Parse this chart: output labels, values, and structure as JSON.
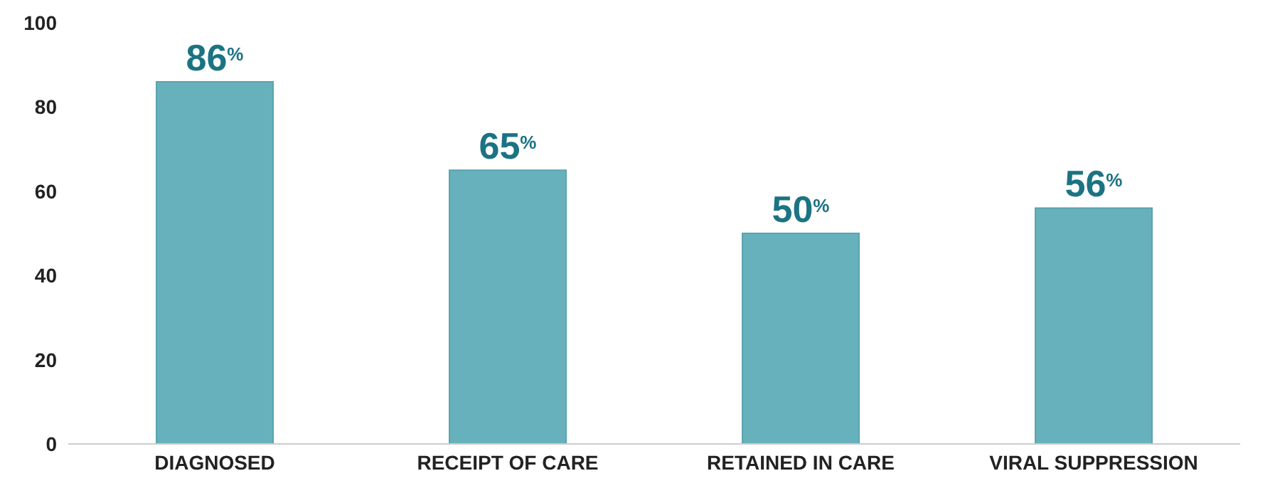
{
  "chart_data": {
    "type": "bar",
    "categories": [
      "DIAGNOSED",
      "RECEIPT OF CARE",
      "RETAINED IN CARE",
      "VIRAL SUPPRESSION"
    ],
    "values": [
      86,
      65,
      50,
      56
    ],
    "color": "#67b1bd",
    "value_labels": [
      "86$^{%}$",
      "65$^{%}$",
      "50$^{%}$",
      "56$^{%}$"
    ],
    "ylim": [
      0,
      100
    ],
    "yticks": [
      0,
      20,
      40,
      60,
      80,
      100
    ]
  }
}
